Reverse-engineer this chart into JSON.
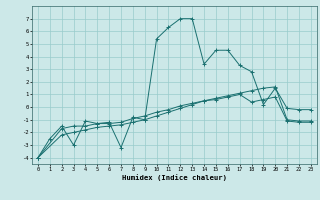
{
  "xlabel": "Humidex (Indice chaleur)",
  "bg_color": "#cce8e8",
  "grid_color": "#99cccc",
  "line_color": "#1a7070",
  "xlim": [
    -0.5,
    23.5
  ],
  "ylim": [
    -4.5,
    8.0
  ],
  "xticks": [
    0,
    1,
    2,
    3,
    4,
    5,
    6,
    7,
    8,
    9,
    10,
    11,
    12,
    13,
    14,
    15,
    16,
    17,
    18,
    19,
    20,
    21,
    22,
    23
  ],
  "yticks": [
    -4,
    -3,
    -2,
    -1,
    0,
    1,
    2,
    3,
    4,
    5,
    6,
    7
  ],
  "line1_x": [
    0,
    1,
    2,
    3,
    4,
    5,
    6,
    7,
    8,
    9,
    10,
    11,
    12,
    13,
    14,
    15,
    16,
    17,
    18,
    19,
    20,
    21,
    22,
    23
  ],
  "line1_y": [
    -4.0,
    -2.5,
    -1.5,
    -3.0,
    -1.1,
    -1.3,
    -1.2,
    -3.2,
    -0.8,
    -1.0,
    5.4,
    6.3,
    7.0,
    7.0,
    3.4,
    4.5,
    4.5,
    3.3,
    2.8,
    0.2,
    1.5,
    -0.1,
    -0.2,
    -0.2
  ],
  "line2_x": [
    0,
    2,
    3,
    4,
    5,
    6,
    7,
    8,
    9,
    10,
    11,
    12,
    13,
    14,
    15,
    16,
    17,
    18,
    19,
    20,
    21,
    22,
    23
  ],
  "line2_y": [
    -4.0,
    -1.7,
    -1.5,
    -1.5,
    -1.3,
    -1.3,
    -1.2,
    -0.9,
    -0.7,
    -0.4,
    -0.2,
    0.1,
    0.3,
    0.5,
    0.6,
    0.8,
    1.0,
    0.4,
    0.6,
    0.8,
    -1.1,
    -1.2,
    -1.2
  ],
  "line3_x": [
    0,
    2,
    3,
    4,
    5,
    6,
    7,
    8,
    9,
    10,
    11,
    12,
    13,
    14,
    15,
    16,
    17,
    18,
    19,
    20,
    21,
    22,
    23
  ],
  "line3_y": [
    -4.0,
    -2.2,
    -2.0,
    -1.8,
    -1.6,
    -1.5,
    -1.4,
    -1.2,
    -1.0,
    -0.7,
    -0.4,
    -0.1,
    0.2,
    0.5,
    0.7,
    0.9,
    1.1,
    1.3,
    1.5,
    1.6,
    -1.0,
    -1.1,
    -1.1
  ]
}
